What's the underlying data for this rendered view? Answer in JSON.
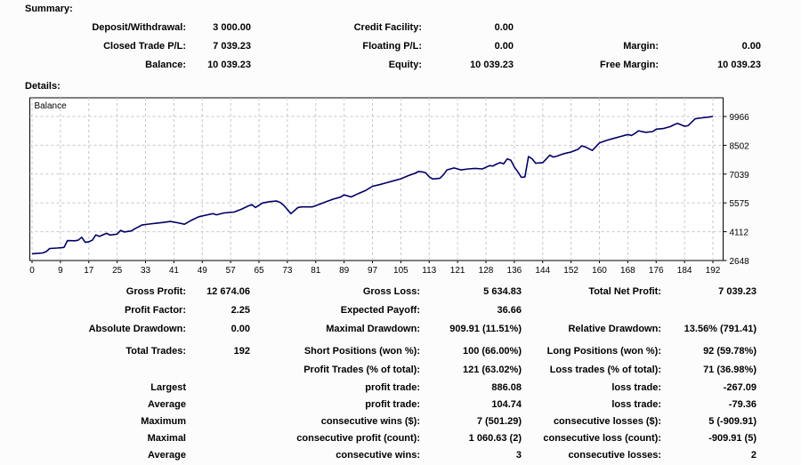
{
  "page": {
    "background": "#fcfcfc",
    "text_color": "#000000"
  },
  "summary": {
    "heading": "Summary:",
    "rows": [
      {
        "cells": [
          "Deposit/Withdrawal:",
          "3 000.00",
          "Credit Facility:",
          "0.00",
          "",
          ""
        ]
      },
      {
        "cells": [
          "Closed Trade P/L:",
          "7 039.23",
          "Floating P/L:",
          "0.00",
          "Margin:",
          "0.00"
        ]
      },
      {
        "cells": [
          "Balance:",
          "10 039.23",
          "Equity:",
          "10 039.23",
          "Free Margin:",
          "10 039.23"
        ]
      }
    ]
  },
  "details": {
    "heading": "Details:",
    "groups": [
      {
        "rows": [
          {
            "cells": [
              "Gross Profit:",
              "12 674.06",
              "Gross Loss:",
              "5 634.83",
              "Total Net Profit:",
              "7 039.23"
            ]
          },
          {
            "cells": [
              "Profit Factor:",
              "2.25",
              "Expected Payoff:",
              "36.66",
              "",
              ""
            ]
          },
          {
            "cells": [
              "Absolute Drawdown:",
              "0.00",
              "Maximal Drawdown:",
              "909.91 (11.51%)",
              "Relative Drawdown:",
              "13.56% (791.41)"
            ]
          }
        ]
      },
      {
        "rows": [
          {
            "cells": [
              "Total Trades:",
              "192",
              "Short Positions (won %):",
              "100 (66.00%)",
              "Long Positions (won %):",
              "92 (59.78%)"
            ]
          },
          {
            "cells": [
              "",
              "",
              "Profit Trades (% of total):",
              "121 (63.02%)",
              "Loss trades (% of total):",
              "71 (36.98%)"
            ]
          }
        ]
      },
      {
        "rows": [
          {
            "cells": [
              "Largest",
              "",
              "profit trade:",
              "886.08",
              "loss trade:",
              "-267.09"
            ]
          },
          {
            "cells": [
              "Average",
              "",
              "profit trade:",
              "104.74",
              "loss trade:",
              "-79.36"
            ]
          },
          {
            "cells": [
              "Maximum",
              "",
              "consecutive wins ($):",
              "7 (501.29)",
              "consecutive losses ($):",
              "5 (-909.91)"
            ]
          },
          {
            "cells": [
              "Maximal",
              "",
              "consecutive profit (count):",
              "1 060.63 (2)",
              "consecutive loss (count):",
              "-909.91 (5)"
            ]
          },
          {
            "cells": [
              "Average",
              "",
              "consecutive wins:",
              "3",
              "consecutive losses:",
              "2"
            ]
          }
        ]
      }
    ]
  },
  "chart_data": {
    "type": "line",
    "title": "Balance",
    "series_name": "Balance",
    "line_color": "#000066",
    "grid_color": "#c6c6c6",
    "plot_background": "#ffffff",
    "border_color": "#000000",
    "ylim": [
      2648,
      9966
    ],
    "xlim": [
      0,
      192
    ],
    "y_tick_labels": [
      "2648",
      "4112",
      "5575",
      "7039",
      "8502",
      "9966"
    ],
    "x_tick_labels": [
      "0",
      "9",
      "17",
      "25",
      "33",
      "41",
      "49",
      "57",
      "65",
      "73",
      "81",
      "89",
      "97",
      "105",
      "113",
      "121",
      "128",
      "136",
      "144",
      "152",
      "160",
      "168",
      "176",
      "184",
      "192"
    ],
    "x": [
      0,
      2,
      3,
      4,
      5,
      7,
      9,
      10,
      12,
      13,
      14,
      15,
      16,
      17,
      18,
      19,
      21,
      22,
      24,
      25,
      26,
      28,
      29,
      31,
      33,
      35,
      37,
      39,
      41,
      43,
      45,
      47,
      49,
      51,
      52,
      54,
      57,
      59,
      61,
      62,
      63,
      65,
      67,
      69,
      70,
      71,
      73,
      75,
      76,
      79,
      81,
      83,
      85,
      87,
      88,
      90,
      92,
      94,
      96,
      98,
      100,
      102,
      104,
      106,
      108,
      109,
      110,
      111,
      112,
      113,
      115,
      116,
      117,
      119,
      120,
      121,
      123,
      125,
      127,
      129,
      130,
      131,
      132,
      133,
      134,
      135,
      136,
      137,
      138,
      139,
      140,
      141,
      142,
      144,
      145,
      146,
      147,
      148,
      150,
      152,
      154,
      155,
      156,
      158,
      160,
      162,
      164,
      166,
      168,
      169,
      170,
      171,
      173,
      175,
      176,
      178,
      180,
      181,
      182,
      184,
      185,
      187,
      189,
      191,
      192
    ],
    "y": [
      2990,
      3020,
      3030,
      3100,
      3260,
      3280,
      3310,
      3660,
      3650,
      3680,
      3830,
      3570,
      3600,
      3680,
      3950,
      3870,
      4030,
      3940,
      3990,
      4180,
      4100,
      4150,
      4260,
      4450,
      4500,
      4540,
      4580,
      4630,
      4570,
      4490,
      4700,
      4870,
      4950,
      5030,
      4970,
      5060,
      5110,
      5250,
      5420,
      5490,
      5340,
      5570,
      5640,
      5670,
      5600,
      5450,
      5030,
      5340,
      5370,
      5370,
      5500,
      5640,
      5770,
      5870,
      5980,
      5880,
      6050,
      6200,
      6420,
      6500,
      6600,
      6700,
      6800,
      6950,
      7080,
      7170,
      7150,
      7100,
      6900,
      6790,
      6820,
      7000,
      7250,
      7350,
      7300,
      7250,
      7300,
      7330,
      7300,
      7470,
      7450,
      7550,
      7620,
      7560,
      7810,
      7750,
      7400,
      7150,
      6870,
      6900,
      7930,
      7820,
      7590,
      7620,
      7800,
      8000,
      7900,
      7950,
      8080,
      8160,
      8300,
      8470,
      8420,
      8240,
      8620,
      8750,
      8850,
      8950,
      9050,
      9000,
      9100,
      9240,
      9160,
      9200,
      9320,
      9350,
      9450,
      9540,
      9620,
      9470,
      9500,
      9850,
      9900,
      9940,
      9966
    ]
  }
}
